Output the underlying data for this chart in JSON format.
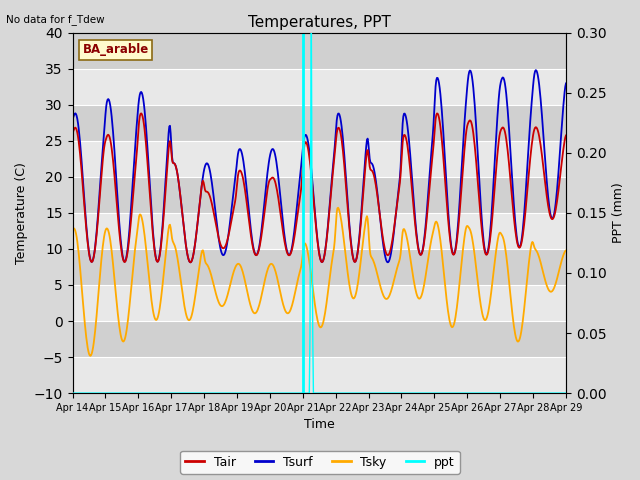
{
  "title": "Temperatures, PPT",
  "subtitle": "No data for f_Tdew",
  "site_label": "BA_arable",
  "xlabel": "Time",
  "ylabel_left": "Temperature (C)",
  "ylabel_right": "PPT (mm)",
  "ylim_left": [
    -10,
    40
  ],
  "ylim_right": [
    0.0,
    0.3
  ],
  "yticks_left": [
    -10,
    -5,
    0,
    5,
    10,
    15,
    20,
    25,
    30,
    35,
    40
  ],
  "yticks_right": [
    0.0,
    0.05,
    0.1,
    0.15,
    0.2,
    0.25,
    0.3
  ],
  "xtick_labels": [
    "Apr 14",
    "Apr 15",
    "Apr 16",
    "Apr 17",
    "Apr 18",
    "Apr 19",
    "Apr 20",
    "Apr 21",
    "Apr 22",
    "Apr 23",
    "Apr 24",
    "Apr 25",
    "Apr 26",
    "Apr 27",
    "Apr 28",
    "Apr 29"
  ],
  "vline_color": "#00ffff",
  "tair_color": "#cc0000",
  "tsurf_color": "#0000cc",
  "tsky_color": "#ffaa00",
  "ppt_color": "#00ffff",
  "legend_labels": [
    "Tair",
    "Tsurf",
    "Tsky",
    "ppt"
  ],
  "bg_color": "#d8d8d8",
  "band_colors": [
    "#e8e8e8",
    "#d0d0d0"
  ]
}
